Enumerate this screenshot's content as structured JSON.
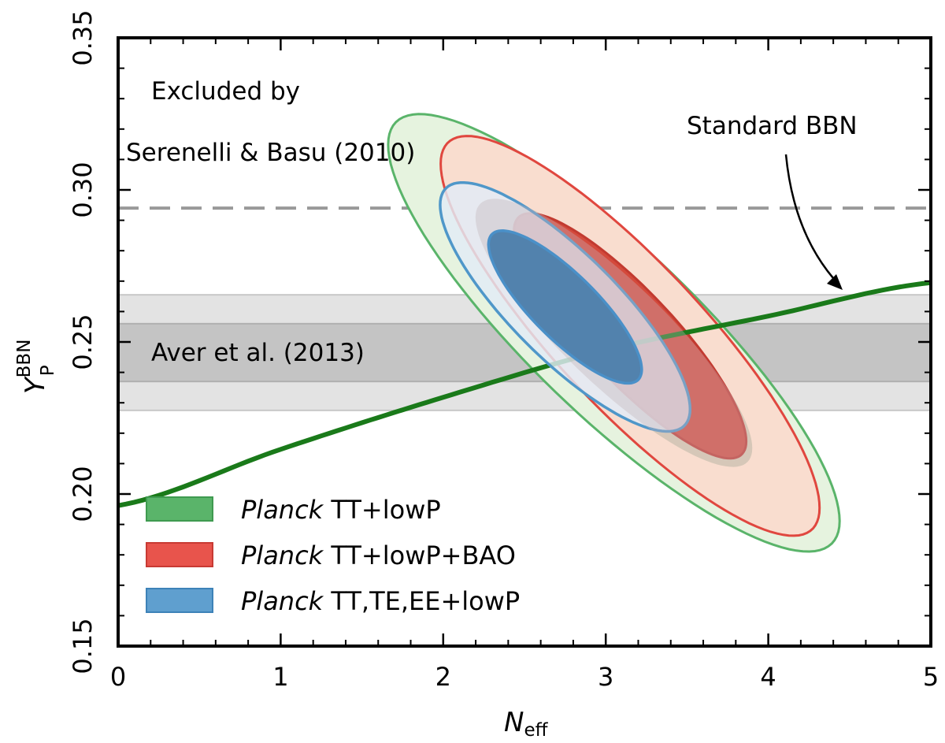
{
  "chart_data": {
    "type": "contour",
    "xlabel": "N",
    "xlabel_sub": "eff",
    "ylabel": "Y",
    "ylabel_sub": "P",
    "ylabel_sup": "BBN",
    "xlim": [
      0,
      5
    ],
    "ylim": [
      0.15,
      0.35
    ],
    "xticks": [
      0,
      1,
      2,
      3,
      4,
      5
    ],
    "xtick_labels": [
      "0",
      "1",
      "2",
      "3",
      "4",
      "5"
    ],
    "yticks": [
      0.15,
      0.2,
      0.25,
      0.3,
      0.35
    ],
    "ytick_labels": [
      "0.15",
      "0.20",
      "0.25",
      "0.30",
      "0.35"
    ],
    "grid": false,
    "legend_placement": "bottom-left",
    "colors": {
      "green": "#5ab46a",
      "red": "#e0473f",
      "blue": "#4f97c9",
      "bbn_line": "#1a7a1a"
    },
    "annotations": {
      "excluded_line1": "Excluded by",
      "excluded_line2": "Serenelli & Basu (2010)",
      "aver": "Aver et al. (2013)",
      "standard_bbn": "Standard BBN"
    },
    "reference_lines": {
      "serenelli_upper_limit": 0.294
    },
    "bands": {
      "aver_outer": [
        0.2275,
        0.2655
      ],
      "aver_inner": [
        0.237,
        0.256
      ]
    },
    "standard_bbn_curve": {
      "x": [
        0,
        1,
        2,
        3,
        4,
        5
      ],
      "y": [
        0.1962,
        0.2147,
        0.2318,
        0.2473,
        0.2585,
        0.2695
      ]
    },
    "series": [
      {
        "name_italic": "Planck",
        "name_rest": " TT+lowP",
        "color": "#5ab46a",
        "contour_68": {
          "center": [
            3.05,
            0.253
          ],
          "sx": 0.56,
          "sy": 0.029,
          "rho": -0.86,
          "level": 1.52
        },
        "contour_95": {
          "center": [
            3.05,
            0.253
          ],
          "sx": 0.56,
          "sy": 0.029,
          "rho": -0.86,
          "level": 2.48
        }
      },
      {
        "name_italic": "Planck",
        "name_rest": " TT+lowP+BAO",
        "color": "#e0473f",
        "contour_68": {
          "center": [
            3.15,
            0.252
          ],
          "sx": 0.47,
          "sy": 0.0265,
          "rho": -0.86,
          "level": 1.52
        },
        "contour_95": {
          "center": [
            3.15,
            0.252
          ],
          "sx": 0.47,
          "sy": 0.0265,
          "rho": -0.86,
          "level": 2.48
        }
      },
      {
        "name_italic": "Planck",
        "name_rest": " TT,TE,EE+lowP",
        "color": "#4f97c9",
        "contour_68": {
          "center": [
            2.75,
            0.2615
          ],
          "sx": 0.31,
          "sy": 0.0165,
          "rho": -0.82,
          "level": 1.52
        },
        "contour_95": {
          "center": [
            2.75,
            0.2615
          ],
          "sx": 0.31,
          "sy": 0.0165,
          "rho": -0.82,
          "level": 2.48
        }
      }
    ]
  }
}
